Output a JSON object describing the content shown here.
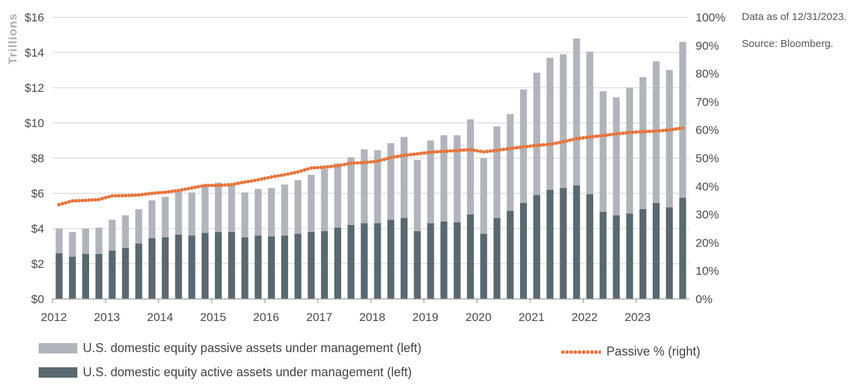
{
  "notes": {
    "as_of": "Data as of 12/31/2023.",
    "source": "Source: Bloomberg."
  },
  "legend": {
    "passive_label": "U.S. domestic equity passive assets under management (left)",
    "active_label": "U.S. domestic equity active assets under management (left)",
    "pct_label": "Passive % (right)"
  },
  "colors": {
    "passive": "#b1b5bb",
    "active": "#5a6870",
    "passive_pct": "#e8743b",
    "grid": "#d9d9d9"
  },
  "chart_data": {
    "type": "bar",
    "ylabel": "Trillions",
    "ylim": [
      0,
      16
    ],
    "y_ticks": [
      "$0",
      "$2",
      "$4",
      "$6",
      "$8",
      "$10",
      "$12",
      "$14",
      "$16"
    ],
    "y2lim": [
      0,
      100
    ],
    "y2_ticks": [
      "0%",
      "10%",
      "20%",
      "30%",
      "40%",
      "50%",
      "60%",
      "70%",
      "80%",
      "90%",
      "100%"
    ],
    "x_ticks": [
      "2012",
      "2013",
      "2014",
      "2015",
      "2016",
      "2017",
      "2018",
      "2019",
      "2020",
      "2021",
      "2022",
      "2023"
    ],
    "stacked": true,
    "grid": true,
    "legend_position": "bottom",
    "series": [
      {
        "name": "U.S. domestic equity active assets under management (left)",
        "values": [
          2.6,
          2.4,
          2.55,
          2.55,
          2.75,
          2.9,
          3.15,
          3.45,
          3.5,
          3.65,
          3.6,
          3.75,
          3.8,
          3.8,
          3.5,
          3.6,
          3.55,
          3.6,
          3.7,
          3.8,
          3.85,
          4.05,
          4.2,
          4.3,
          4.3,
          4.5,
          4.6,
          3.85,
          4.3,
          4.4,
          4.35,
          4.8,
          3.7,
          4.6,
          5.0,
          5.45,
          5.9,
          6.2,
          6.3,
          6.45,
          5.95,
          4.95,
          4.75,
          4.85,
          5.1,
          5.45,
          5.2,
          5.75
        ]
      },
      {
        "name": "U.S. domestic equity passive assets under management (left)",
        "values": [
          1.4,
          1.4,
          1.45,
          1.5,
          1.75,
          1.85,
          1.95,
          2.15,
          2.3,
          2.45,
          2.45,
          2.7,
          2.8,
          2.75,
          2.55,
          2.65,
          2.75,
          2.9,
          3.05,
          3.25,
          3.55,
          3.65,
          3.85,
          4.2,
          4.15,
          4.35,
          4.6,
          4.05,
          4.7,
          4.9,
          4.95,
          5.4,
          4.3,
          5.2,
          5.5,
          6.45,
          6.95,
          7.5,
          7.6,
          8.35,
          8.1,
          6.85,
          6.7,
          7.15,
          7.5,
          8.05,
          7.8,
          8.85
        ]
      },
      {
        "name": "Passive % (right)",
        "axis": "right",
        "values": [
          33.5,
          34.8,
          35.0,
          35.3,
          36.6,
          36.7,
          36.9,
          37.5,
          37.9,
          38.5,
          39.4,
          40.3,
          40.3,
          40.6,
          41.5,
          42.3,
          43.3,
          44.1,
          45.1,
          46.5,
          46.8,
          47.3,
          48.2,
          48.4,
          48.9,
          50.2,
          51.0,
          51.5,
          52.1,
          52.4,
          52.7,
          53.0,
          52.2,
          52.8,
          53.4,
          54.0,
          54.5,
          54.9,
          55.8,
          56.9,
          57.5,
          58.0,
          58.6,
          59.1,
          59.4,
          59.6,
          60.0,
          60.7
        ]
      }
    ]
  }
}
